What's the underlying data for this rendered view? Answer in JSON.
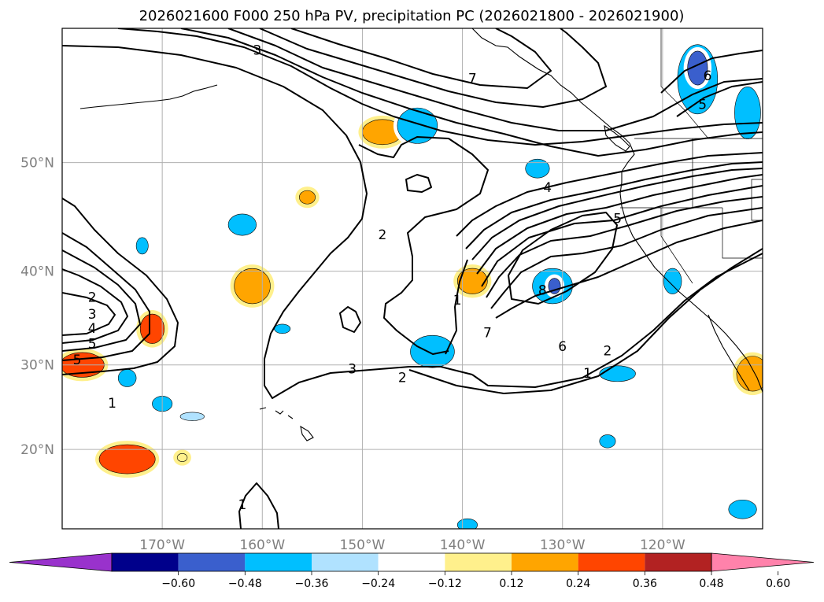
{
  "chart_data": {
    "type": "contour-map",
    "title": "2026021600 F000 250 hPa PV, precipitation PC (2026021800 - 2026021900)",
    "projection": "Mercator",
    "lon_range": [
      -180,
      -110
    ],
    "lat_range": [
      10,
      60
    ],
    "lat_ticks": [
      {
        "value": 50,
        "label": "50°N"
      },
      {
        "value": 40,
        "label": "40°N"
      },
      {
        "value": 30,
        "label": "30°N"
      },
      {
        "value": 20,
        "label": "20°N"
      }
    ],
    "lon_ticks": [
      {
        "value": -170,
        "label": "170°W"
      },
      {
        "value": -160,
        "label": "160°W"
      },
      {
        "value": -150,
        "label": "150°W"
      },
      {
        "value": -140,
        "label": "140°W"
      },
      {
        "value": -130,
        "label": "130°W"
      },
      {
        "value": -120,
        "label": "120°W"
      }
    ],
    "gridlines": true,
    "pv_contour_labels": [
      {
        "text": "3",
        "lon": -160.5,
        "lat": 58.5
      },
      {
        "text": "7",
        "lon": -139.0,
        "lat": 56.5
      },
      {
        "text": "6",
        "lon": -115.5,
        "lat": 56.7
      },
      {
        "text": "5",
        "lon": -116.0,
        "lat": 54.6
      },
      {
        "text": "4",
        "lon": -131.5,
        "lat": 47.8
      },
      {
        "text": "5",
        "lon": -124.5,
        "lat": 45.0
      },
      {
        "text": "2",
        "lon": -148.0,
        "lat": 43.5
      },
      {
        "text": "8",
        "lon": -132.0,
        "lat": 38.0
      },
      {
        "text": "1",
        "lon": -140.5,
        "lat": 37.0
      },
      {
        "text": "7",
        "lon": -137.5,
        "lat": 33.5
      },
      {
        "text": "6",
        "lon": -130.0,
        "lat": 32.0
      },
      {
        "text": "2",
        "lon": -125.5,
        "lat": 31.5
      },
      {
        "text": "1",
        "lon": -127.5,
        "lat": 29.0
      },
      {
        "text": "3",
        "lon": -151.0,
        "lat": 29.5
      },
      {
        "text": "2",
        "lon": -146.0,
        "lat": 28.5
      },
      {
        "text": "2",
        "lon": -177.0,
        "lat": 37.3
      },
      {
        "text": "3",
        "lon": -177.0,
        "lat": 35.5
      },
      {
        "text": "4",
        "lon": -177.0,
        "lat": 34.0
      },
      {
        "text": "5",
        "lon": -177.0,
        "lat": 32.3
      },
      {
        "text": "5",
        "lon": -178.5,
        "lat": 30.5
      },
      {
        "text": "1",
        "lon": -175.0,
        "lat": 25.5
      },
      {
        "text": "1",
        "lon": -162.0,
        "lat": 13.0
      }
    ],
    "precip_patches": [
      {
        "lon": -173.5,
        "lat": 18.8,
        "level": 0.36,
        "rx": 2.8,
        "ry": 1.8
      },
      {
        "lon": -178.0,
        "lat": 30.0,
        "level": 0.36,
        "rx": 2.2,
        "ry": 1.4
      },
      {
        "lon": -171.0,
        "lat": 34.0,
        "level": 0.36,
        "rx": 1.2,
        "ry": 1.6
      },
      {
        "lon": -168.0,
        "lat": 19.0,
        "level": 0.12,
        "rx": 0.5,
        "ry": 0.5
      },
      {
        "lon": -161.0,
        "lat": 38.5,
        "level": 0.24,
        "rx": 1.8,
        "ry": 1.8
      },
      {
        "lon": -155.5,
        "lat": 47.0,
        "level": 0.24,
        "rx": 0.8,
        "ry": 0.6
      },
      {
        "lon": -148.0,
        "lat": 52.5,
        "level": 0.24,
        "rx": 2.0,
        "ry": 1.0
      },
      {
        "lon": -139.0,
        "lat": 39.0,
        "level": 0.24,
        "rx": 1.5,
        "ry": 1.3
      },
      {
        "lon": -111.0,
        "lat": 29.0,
        "level": 0.24,
        "rx": 1.6,
        "ry": 2.0
      },
      {
        "lon": -162.0,
        "lat": 44.5,
        "level": -0.36,
        "rx": 1.4,
        "ry": 1.0
      },
      {
        "lon": -172.0,
        "lat": 42.5,
        "level": -0.36,
        "rx": 0.6,
        "ry": 0.8
      },
      {
        "lon": -173.5,
        "lat": 28.5,
        "level": -0.36,
        "rx": 0.9,
        "ry": 1.0
      },
      {
        "lon": -170.0,
        "lat": 25.5,
        "level": -0.36,
        "rx": 1.0,
        "ry": 0.9
      },
      {
        "lon": -167.0,
        "lat": 24.0,
        "level": -0.24,
        "rx": 1.2,
        "ry": 0.5
      },
      {
        "lon": -158.0,
        "lat": 34.0,
        "level": -0.36,
        "rx": 0.8,
        "ry": 0.5
      },
      {
        "lon": -144.5,
        "lat": 53.0,
        "level": -0.36,
        "rx": 2.0,
        "ry": 1.4
      },
      {
        "lon": -143.0,
        "lat": 31.5,
        "level": -0.36,
        "rx": 2.2,
        "ry": 1.8
      },
      {
        "lon": -132.5,
        "lat": 49.5,
        "level": -0.36,
        "rx": 1.2,
        "ry": 0.8
      },
      {
        "lon": -131.0,
        "lat": 38.5,
        "level": -0.36,
        "rx": 2.0,
        "ry": 1.8
      },
      {
        "lon": -130.8,
        "lat": 38.5,
        "level": -0.48,
        "rx": 0.6,
        "ry": 0.8
      },
      {
        "lon": -124.5,
        "lat": 29.0,
        "level": -0.36,
        "rx": 1.8,
        "ry": 0.9
      },
      {
        "lon": -125.5,
        "lat": 21.0,
        "level": -0.36,
        "rx": 0.8,
        "ry": 0.8
      },
      {
        "lon": -119.0,
        "lat": 39.0,
        "level": -0.36,
        "rx": 0.9,
        "ry": 1.3
      },
      {
        "lon": -116.5,
        "lat": 56.5,
        "level": -0.36,
        "rx": 2.0,
        "ry": 2.5
      },
      {
        "lon": -116.5,
        "lat": 57.3,
        "level": -0.48,
        "rx": 1.0,
        "ry": 1.2
      },
      {
        "lon": -111.5,
        "lat": 54.0,
        "level": -0.36,
        "rx": 1.3,
        "ry": 2.0
      },
      {
        "lon": -112.0,
        "lat": 12.5,
        "level": -0.36,
        "rx": 1.4,
        "ry": 1.2
      },
      {
        "lon": -139.5,
        "lat": 10.5,
        "level": -0.36,
        "rx": 1.0,
        "ry": 0.8
      }
    ],
    "colorbar": {
      "levels": [
        -0.6,
        -0.48,
        -0.36,
        -0.24,
        -0.12,
        0.12,
        0.24,
        0.36,
        0.48,
        0.6
      ],
      "tick_labels": [
        "−0.60",
        "−0.48",
        "−0.36",
        "−0.24",
        "−0.12",
        "0.12",
        "0.24",
        "0.36",
        "0.48",
        "0.60"
      ],
      "colors": [
        "#9932cc",
        "#00008b",
        "#3a5fcd",
        "#00bfff",
        "#b0e2ff",
        "#ffffff",
        "#fff08c",
        "#ffa500",
        "#ff4500",
        "#b22222",
        "#ff82ab"
      ],
      "extend": "both"
    }
  }
}
